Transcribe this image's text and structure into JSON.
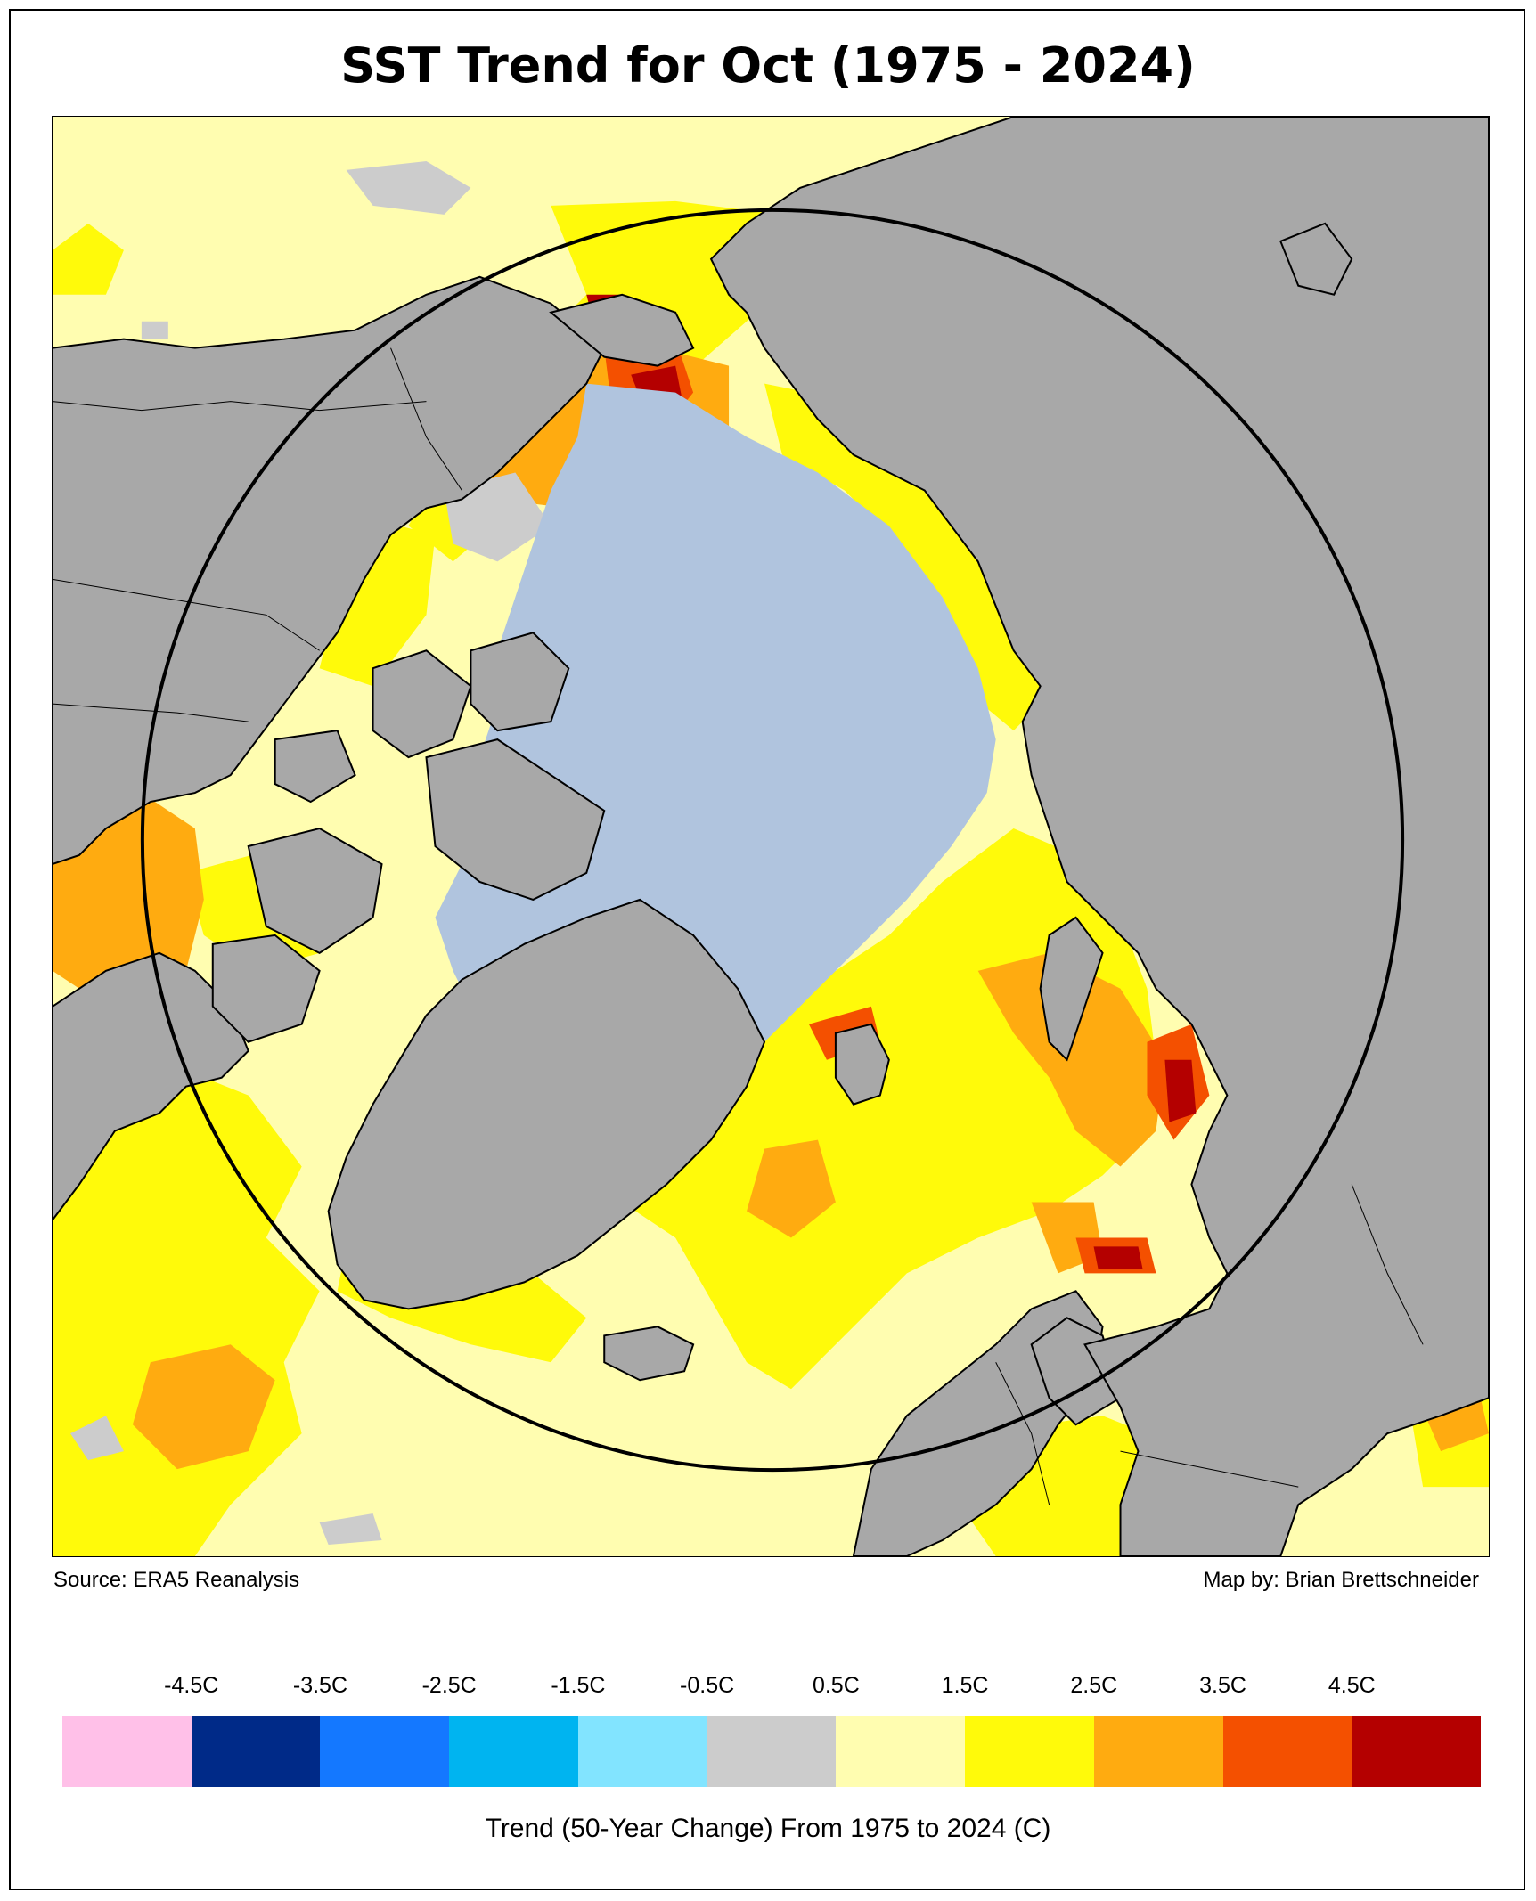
{
  "title": "SST Trend for Oct (1975 - 2024)",
  "source": "Source: ERA5 Reanalysis",
  "credit": "Map by: Brian Brettschneider",
  "legend": {
    "tick_labels": [
      "-4.5C",
      "-3.5C",
      "-2.5C",
      "-1.5C",
      "-0.5C",
      "0.5C",
      "1.5C",
      "2.5C",
      "3.5C",
      "4.5C"
    ],
    "colors": [
      "#ffc0e8",
      "#002a88",
      "#1478ff",
      "#00b4f0",
      "#82e4ff",
      "#cccccc",
      "#fffdb0",
      "#fffa0a",
      "#ffab10",
      "#f45000",
      "#b40000"
    ],
    "label": "Trend (50-Year Change) From 1975 to 2024 (C)"
  },
  "map": {
    "projection": "north polar stereographic",
    "circle": "Arctic Circle",
    "colors": {
      "land": "#a8a8a8",
      "sea_ice": "#b0c4de",
      "ocean_default": "#fffdb0"
    }
  }
}
